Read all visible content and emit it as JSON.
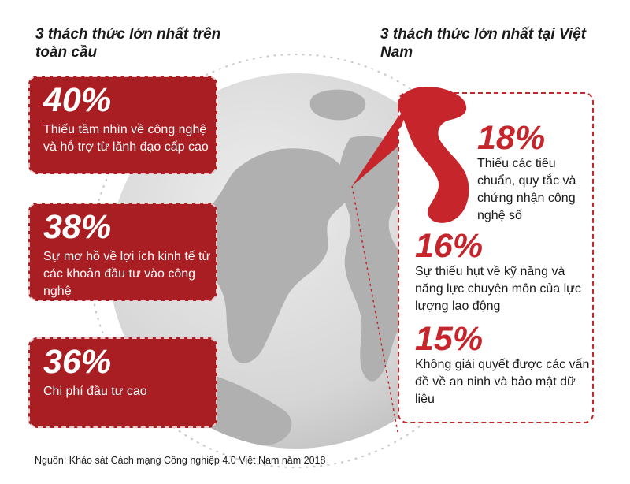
{
  "global": {
    "heading": "3 thách thức lớn nhất trên toàn cầu",
    "challenges": [
      {
        "percent": "40%",
        "text": "Thiếu tầm nhìn về công nghệ và hỗ trợ từ lãnh đạo cấp cao"
      },
      {
        "percent": "38%",
        "text": "Sự mơ hồ về lợi ích kinh tế từ các khoản đầu tư vào công nghệ"
      },
      {
        "percent": "36%",
        "text": "Chi phí đầu tư cao"
      }
    ]
  },
  "vietnam": {
    "heading": "3 thách thức lớn nhất tại Việt Nam",
    "challenges": [
      {
        "percent": "18%",
        "text": "Thiếu các tiêu chuẩn, quy tắc và chứng nhận công nghệ số"
      },
      {
        "percent": "16%",
        "text": "Sự thiếu hụt về kỹ năng và năng lực chuyên môn của lực lượng lao động"
      },
      {
        "percent": "15%",
        "text": "Không giải quyết được các vấn đề về an ninh và bảo mật dữ liệu"
      }
    ]
  },
  "source": "Nguồn: Khảo sát Cách mạng Công nghiệp 4.0 Việt Nam năm 2018",
  "colors": {
    "card_red": "#a91e22",
    "accent_red": "#c5252b",
    "globe_gray": "#d9d9d9",
    "land_gray": "#b3b3b3"
  }
}
